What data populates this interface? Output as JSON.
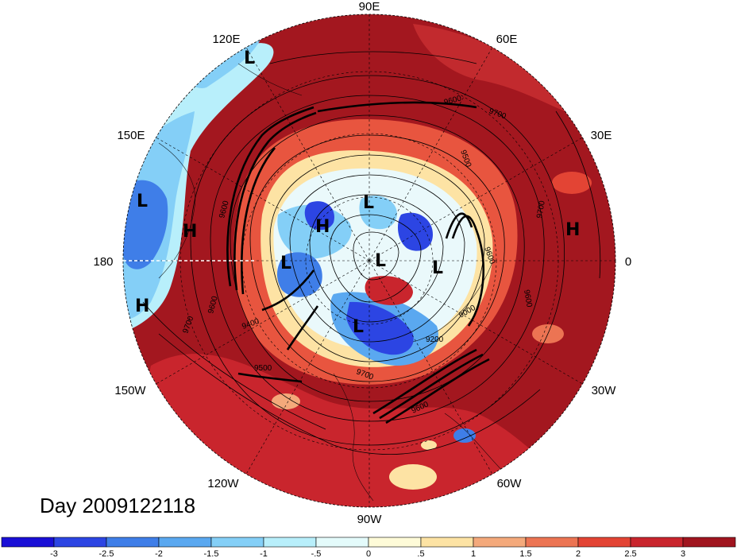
{
  "title": "Day 2009122118",
  "longitude_labels": [
    {
      "id": "lon-90e",
      "text": "90E"
    },
    {
      "id": "lon-60e",
      "text": "60E"
    },
    {
      "id": "lon-30e",
      "text": "30E"
    },
    {
      "id": "lon-0",
      "text": "0"
    },
    {
      "id": "lon-30w",
      "text": "30W"
    },
    {
      "id": "lon-60w",
      "text": "60W"
    },
    {
      "id": "lon-90w",
      "text": "90W"
    },
    {
      "id": "lon-120w",
      "text": "120W"
    },
    {
      "id": "lon-150w",
      "text": "150W"
    },
    {
      "id": "lon-180",
      "text": "180"
    },
    {
      "id": "lon-150e",
      "text": "150E"
    },
    {
      "id": "lon-120e",
      "text": "120E"
    }
  ],
  "pressure_centers": [
    {
      "id": "low-1",
      "text": "L"
    },
    {
      "id": "low-2",
      "text": "L"
    },
    {
      "id": "low-3",
      "text": "L"
    },
    {
      "id": "low-4",
      "text": "L"
    },
    {
      "id": "low-5",
      "text": "L"
    },
    {
      "id": "low-6",
      "text": "L"
    },
    {
      "id": "low-7",
      "text": "L"
    },
    {
      "id": "high-1",
      "text": "H"
    },
    {
      "id": "high-2",
      "text": "H"
    },
    {
      "id": "high-3",
      "text": "H"
    },
    {
      "id": "high-4",
      "text": "H"
    }
  ],
  "contour_labels": [
    {
      "id": "c-9600-a",
      "text": "9600"
    },
    {
      "id": "c-9500-a",
      "text": "9500"
    },
    {
      "id": "c-9700-a",
      "text": "9700"
    },
    {
      "id": "c-9600-b",
      "text": "9600"
    },
    {
      "id": "c-9600-c",
      "text": "9600"
    },
    {
      "id": "c-9000-a",
      "text": "9000"
    },
    {
      "id": "c-9200-a",
      "text": "9200"
    },
    {
      "id": "c-9600-d",
      "text": "9600"
    },
    {
      "id": "c-9700-b",
      "text": "9700"
    },
    {
      "id": "c-9600-e",
      "text": "9600"
    },
    {
      "id": "c-9700-c",
      "text": "9700"
    },
    {
      "id": "c-9400-a",
      "text": "9400"
    },
    {
      "id": "c-9600-f",
      "text": "9600"
    },
    {
      "id": "c-9700-d",
      "text": "9700"
    },
    {
      "id": "c-9500-b",
      "text": "9500"
    }
  ],
  "colorbar": {
    "colors": [
      "#1a0fd6",
      "#2c45e3",
      "#3f7ee8",
      "#5aa8f0",
      "#84cff7",
      "#b8effb",
      "#e4fbfb",
      "#fefbd8",
      "#fde3a4",
      "#f4a97b",
      "#ec7453",
      "#e34434",
      "#c9252d",
      "#a0151f"
    ],
    "ticks": [
      "-3",
      "-2.5",
      "-2",
      "-1.5",
      "-1",
      "-.5",
      "0",
      ".5",
      "1",
      "1.5",
      "2",
      "2.5",
      "3"
    ]
  },
  "colors": {
    "strong_warm": "#a0151f",
    "warm": "#c9252d",
    "neutral": "#fefbd8",
    "cool": "#84cff7",
    "strong_cool": "#2c45e3"
  }
}
